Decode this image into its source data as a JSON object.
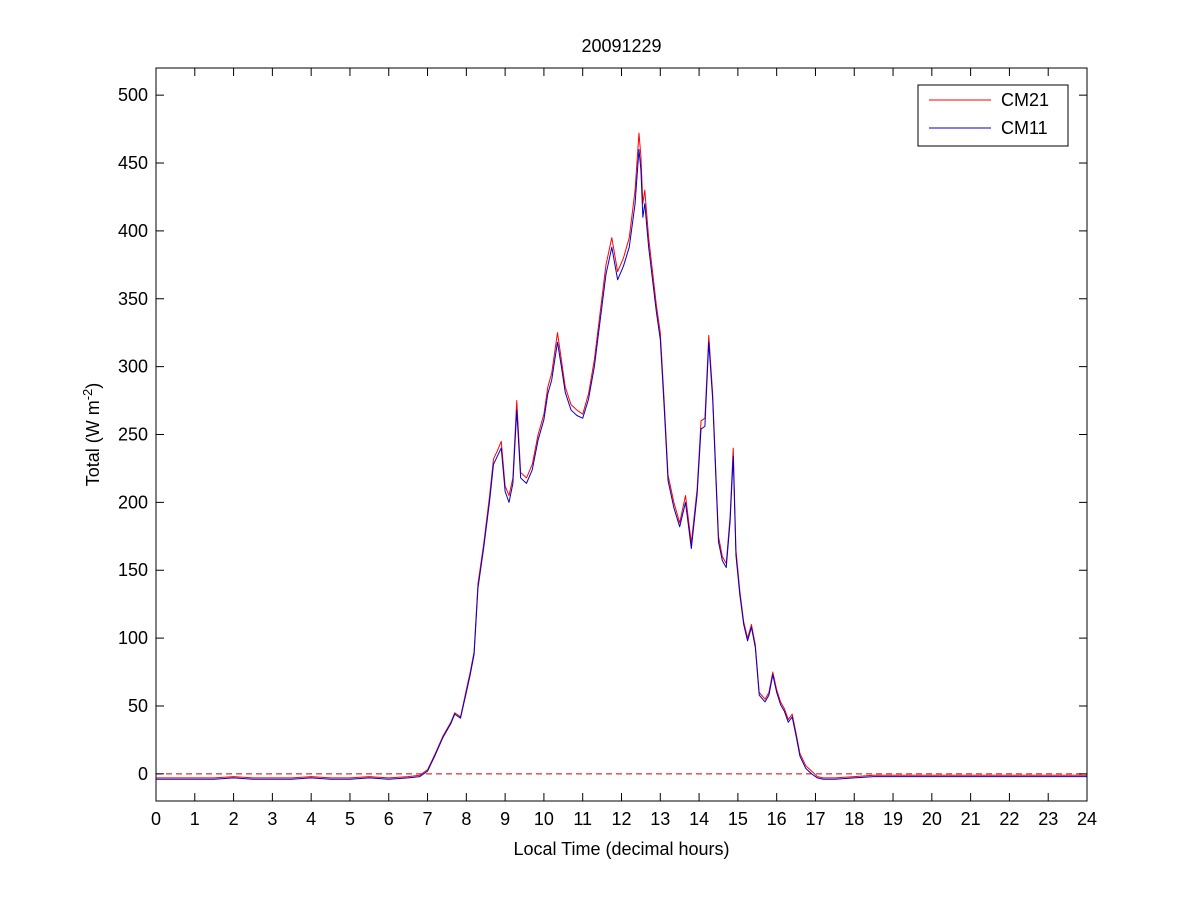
{
  "chart_data": {
    "type": "line",
    "title": "20091229",
    "xlabel": "Local Time (decimal hours)",
    "ylabel": {
      "prefix": "Total (W m",
      "superscript": "-2",
      "suffix": ")"
    },
    "xlim": [
      0,
      24
    ],
    "ylim": [
      -20,
      520
    ],
    "xticks": [
      0,
      1,
      2,
      3,
      4,
      5,
      6,
      7,
      8,
      9,
      10,
      11,
      12,
      13,
      14,
      15,
      16,
      17,
      18,
      19,
      20,
      21,
      22,
      23,
      24
    ],
    "yticks": [
      0,
      50,
      100,
      150,
      200,
      250,
      300,
      350,
      400,
      450,
      500
    ],
    "grid": false,
    "legend_position": "top-right",
    "zero_line": {
      "y": 0,
      "color": "#cc0000",
      "style": "dashed"
    },
    "series": [
      {
        "name": "CM21",
        "color": "#ff0000",
        "x": [
          0,
          0.5,
          1,
          1.5,
          2,
          2.5,
          3,
          3.5,
          4,
          4.5,
          5,
          5.5,
          6,
          6.5,
          6.8,
          7,
          7.2,
          7.4,
          7.6,
          7.7,
          7.85,
          8,
          8.1,
          8.2,
          8.3,
          8.45,
          8.6,
          8.7,
          8.8,
          8.9,
          9.0,
          9.1,
          9.2,
          9.3,
          9.4,
          9.55,
          9.7,
          9.85,
          10.0,
          10.1,
          10.2,
          10.35,
          10.45,
          10.55,
          10.7,
          10.85,
          11.0,
          11.15,
          11.3,
          11.45,
          11.6,
          11.75,
          11.9,
          12.05,
          12.2,
          12.35,
          12.45,
          12.5,
          12.55,
          12.6,
          12.7,
          12.8,
          12.9,
          13.0,
          13.1,
          13.2,
          13.35,
          13.5,
          13.65,
          13.8,
          13.95,
          14.05,
          14.15,
          14.25,
          14.35,
          14.5,
          14.6,
          14.7,
          14.8,
          14.88,
          14.95,
          15.05,
          15.15,
          15.25,
          15.35,
          15.45,
          15.55,
          15.7,
          15.8,
          15.9,
          16.0,
          16.1,
          16.2,
          16.3,
          16.4,
          16.5,
          16.6,
          16.75,
          16.9,
          17.05,
          17.2,
          17.5,
          18.0,
          18.5,
          19,
          20,
          21,
          22,
          23,
          24
        ],
        "y": [
          -3,
          -3,
          -3,
          -3,
          -2,
          -3,
          -3,
          -3,
          -2,
          -3,
          -3,
          -2,
          -3,
          -2,
          -1,
          3,
          15,
          28,
          38,
          45,
          42,
          62,
          75,
          90,
          140,
          170,
          205,
          232,
          238,
          245,
          212,
          205,
          218,
          275,
          222,
          218,
          228,
          250,
          265,
          285,
          295,
          325,
          305,
          285,
          272,
          268,
          265,
          280,
          305,
          340,
          375,
          395,
          370,
          380,
          395,
          430,
          472,
          455,
          420,
          430,
          395,
          370,
          345,
          325,
          275,
          220,
          200,
          185,
          205,
          170,
          210,
          260,
          262,
          323,
          280,
          175,
          160,
          155,
          190,
          240,
          165,
          135,
          112,
          100,
          110,
          95,
          60,
          55,
          60,
          75,
          62,
          53,
          48,
          40,
          44,
          30,
          15,
          6,
          2,
          -2,
          -3,
          -3,
          -2,
          -1,
          -1,
          -1,
          -1,
          -1,
          -1,
          -1
        ]
      },
      {
        "name": "CM11",
        "color": "#0000cc",
        "x": [
          0,
          0.5,
          1,
          1.5,
          2,
          2.5,
          3,
          3.5,
          4,
          4.5,
          5,
          5.5,
          6,
          6.5,
          6.8,
          7,
          7.2,
          7.4,
          7.6,
          7.7,
          7.85,
          8,
          8.1,
          8.2,
          8.3,
          8.45,
          8.6,
          8.7,
          8.8,
          8.9,
          9.0,
          9.1,
          9.2,
          9.3,
          9.4,
          9.55,
          9.7,
          9.85,
          10.0,
          10.1,
          10.2,
          10.35,
          10.45,
          10.55,
          10.7,
          10.85,
          11.0,
          11.15,
          11.3,
          11.45,
          11.6,
          11.75,
          11.9,
          12.05,
          12.2,
          12.35,
          12.45,
          12.5,
          12.55,
          12.6,
          12.7,
          12.8,
          12.9,
          13.0,
          13.1,
          13.2,
          13.35,
          13.5,
          13.65,
          13.8,
          13.95,
          14.05,
          14.15,
          14.25,
          14.35,
          14.5,
          14.6,
          14.7,
          14.8,
          14.88,
          14.95,
          15.05,
          15.15,
          15.25,
          15.35,
          15.45,
          15.55,
          15.7,
          15.8,
          15.9,
          16.0,
          16.1,
          16.2,
          16.3,
          16.4,
          16.5,
          16.6,
          16.75,
          16.9,
          17.05,
          17.2,
          17.5,
          18.0,
          18.5,
          19,
          20,
          21,
          22,
          23,
          24
        ],
        "y": [
          -4,
          -4,
          -4,
          -4,
          -3,
          -4,
          -4,
          -4,
          -3,
          -4,
          -4,
          -3,
          -4,
          -3,
          -2,
          2,
          14,
          27,
          37,
          44,
          41,
          60,
          73,
          88,
          137,
          167,
          201,
          228,
          234,
          240,
          208,
          200,
          214,
          268,
          218,
          214,
          224,
          246,
          261,
          280,
          290,
          318,
          300,
          281,
          268,
          264,
          262,
          276,
          300,
          334,
          368,
          388,
          364,
          374,
          388,
          420,
          460,
          445,
          410,
          420,
          388,
          364,
          340,
          320,
          270,
          216,
          196,
          182,
          200,
          166,
          206,
          254,
          256,
          318,
          276,
          171,
          157,
          152,
          186,
          234,
          161,
          132,
          110,
          98,
          108,
          93,
          58,
          53,
          58,
          73,
          60,
          51,
          46,
          38,
          42,
          28,
          13,
          4,
          0,
          -3,
          -4,
          -4,
          -3,
          -2,
          -2,
          -2,
          -2,
          -2,
          -2,
          -2
        ]
      }
    ]
  }
}
